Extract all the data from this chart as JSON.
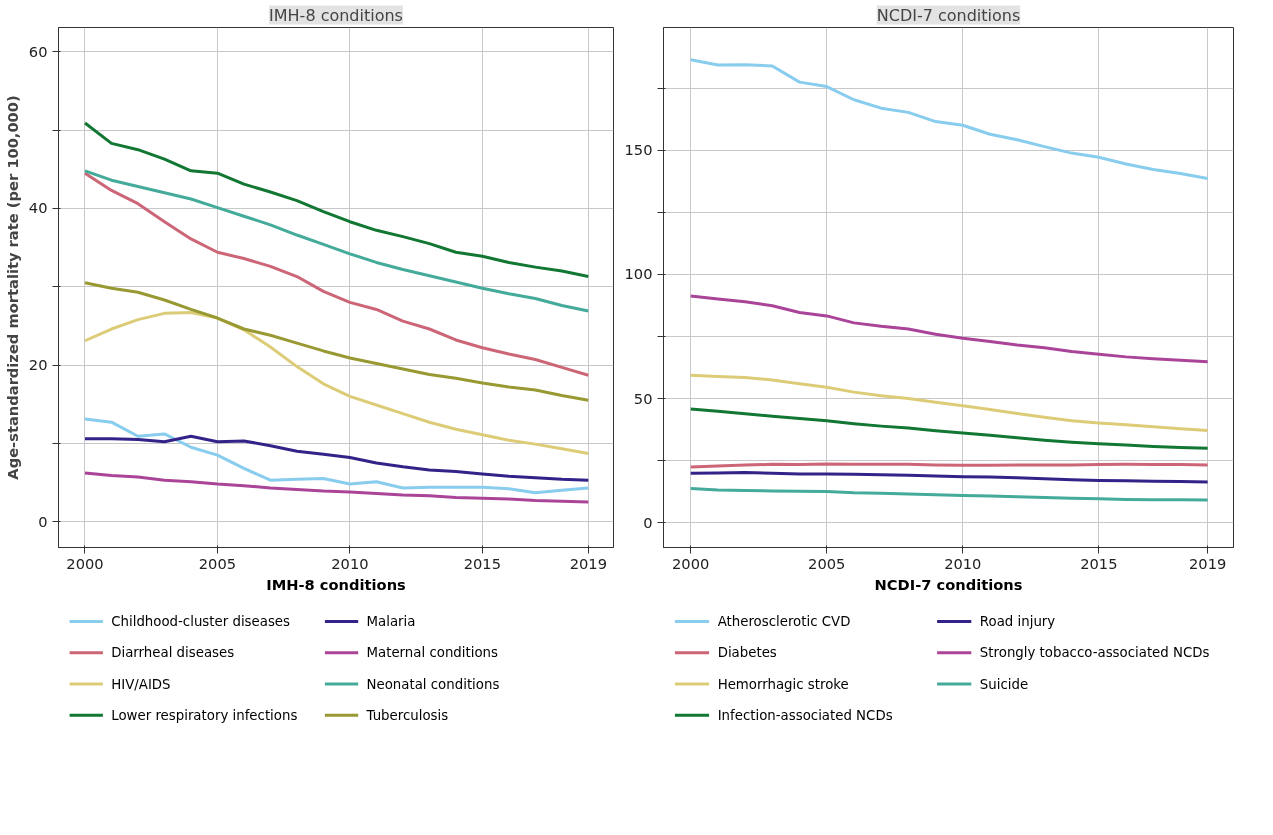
{
  "chart_data": [
    {
      "type": "line",
      "title": "IMH-8 conditions",
      "ylabel": "Age-standardized mortality rate (per 100,000)",
      "legend_title": "IMH-8 conditions",
      "legend": "bottom",
      "grid": true,
      "marker": "none",
      "line_style": "solid",
      "x": [
        2000,
        2001,
        2002,
        2003,
        2004,
        2005,
        2006,
        2007,
        2008,
        2009,
        2010,
        2011,
        2012,
        2013,
        2014,
        2015,
        2016,
        2017,
        2018,
        2019
      ],
      "xlim": [
        1999.0,
        2019.95
      ],
      "xticks": [
        2000,
        2005,
        2010,
        2015,
        2019
      ],
      "ylim": [
        -3.3,
        63.1
      ],
      "yticks": [
        0,
        {
          "value": 10,
          "label": null
        },
        20,
        {
          "value": 30,
          "label": null
        },
        40,
        {
          "value": 50,
          "label": null
        },
        60
      ],
      "series": [
        {
          "name": "Childhood-cluster diseases",
          "color": "#88ccee",
          "values": [
            13.1,
            12.7,
            10.9,
            11.2,
            9.5,
            8.5,
            6.8,
            5.3,
            5.4,
            5.5,
            4.8,
            5.1,
            4.3,
            4.4,
            4.4,
            4.4,
            4.2,
            3.7,
            4.0,
            4.3
          ]
        },
        {
          "name": "Diarrheal diseases",
          "color": "#cc6677",
          "values": [
            44.5,
            42.3,
            40.6,
            38.3,
            36.1,
            34.4,
            33.6,
            32.6,
            31.3,
            29.4,
            28.0,
            27.1,
            25.6,
            24.6,
            23.2,
            22.2,
            21.4,
            20.7,
            19.7,
            18.7
          ]
        },
        {
          "name": "HIV/AIDS",
          "color": "#ddcc77",
          "values": [
            23.1,
            24.6,
            25.8,
            26.6,
            26.7,
            26.0,
            24.5,
            22.3,
            19.8,
            17.6,
            16.0,
            14.9,
            13.8,
            12.7,
            11.8,
            11.1,
            10.4,
            9.9,
            9.3,
            8.7
          ]
        },
        {
          "name": "Lower respiratory infections",
          "color": "#117733",
          "values": [
            50.9,
            48.3,
            47.5,
            46.3,
            44.8,
            44.5,
            43.1,
            42.1,
            41.0,
            39.6,
            38.3,
            37.2,
            36.4,
            35.5,
            34.4,
            33.9,
            33.1,
            32.5,
            32.0,
            31.3
          ]
        },
        {
          "name": "Malaria",
          "color": "#332288",
          "values": [
            10.6,
            10.6,
            10.5,
            10.2,
            10.9,
            10.2,
            10.3,
            9.7,
            9.0,
            8.6,
            8.2,
            7.5,
            7.0,
            6.6,
            6.4,
            6.1,
            5.8,
            5.6,
            5.4,
            5.3
          ]
        },
        {
          "name": "Maternal conditions",
          "color": "#aa4499",
          "values": [
            6.2,
            5.9,
            5.7,
            5.3,
            5.1,
            4.8,
            4.6,
            4.3,
            4.1,
            3.9,
            3.8,
            3.6,
            3.4,
            3.3,
            3.1,
            3.0,
            2.9,
            2.7,
            2.6,
            2.5
          ]
        },
        {
          "name": "Neonatal conditions",
          "color": "#44aa99",
          "values": [
            44.8,
            43.6,
            42.8,
            42.0,
            41.2,
            40.1,
            39.0,
            37.9,
            36.6,
            35.4,
            34.2,
            33.1,
            32.2,
            31.4,
            30.6,
            29.8,
            29.1,
            28.5,
            27.6,
            26.9
          ]
        },
        {
          "name": "Tuberculosis",
          "color": "#999933",
          "values": [
            30.5,
            29.8,
            29.3,
            28.3,
            27.1,
            26.0,
            24.6,
            23.8,
            22.8,
            21.8,
            20.9,
            20.2,
            19.5,
            18.8,
            18.3,
            17.7,
            17.2,
            16.8,
            16.1,
            15.5
          ]
        }
      ]
    },
    {
      "type": "line",
      "title": "NCDI-7 conditions",
      "legend_title": "NCDI-7 conditions",
      "legend": "bottom",
      "grid": true,
      "marker": "none",
      "line_style": "solid",
      "x": [
        2000,
        2001,
        2002,
        2003,
        2004,
        2005,
        2006,
        2007,
        2008,
        2009,
        2010,
        2011,
        2012,
        2013,
        2014,
        2015,
        2016,
        2017,
        2018,
        2019
      ],
      "xlim": [
        1999.0,
        2019.95
      ],
      "xticks": [
        2000,
        2005,
        2010,
        2015,
        2019
      ],
      "ylim": [
        -10,
        199.5
      ],
      "yticks": [
        0,
        {
          "value": 25,
          "label": null
        },
        50,
        {
          "value": 75,
          "label": null
        },
        100,
        {
          "value": 125,
          "label": null
        },
        150,
        {
          "value": 175,
          "label": null
        }
      ],
      "series": [
        {
          "name": "Atherosclerotic CVD",
          "color": "#88ccee",
          "values": [
            186.5,
            184.4,
            184.5,
            184.0,
            177.5,
            175.7,
            170.4,
            167.0,
            165.3,
            161.6,
            160.1,
            156.5,
            154.3,
            151.5,
            148.9,
            147.2,
            144.5,
            142.3,
            140.7,
            138.7
          ]
        },
        {
          "name": "Diabetes",
          "color": "#cc6677",
          "values": [
            22.4,
            22.8,
            23.2,
            23.5,
            23.4,
            23.6,
            23.5,
            23.5,
            23.5,
            23.2,
            23.1,
            23.1,
            23.2,
            23.2,
            23.2,
            23.4,
            23.5,
            23.4,
            23.4,
            23.2
          ]
        },
        {
          "name": "Hemorrhagic stroke",
          "color": "#ddcc77",
          "values": [
            59.4,
            58.9,
            58.5,
            57.5,
            56.0,
            54.6,
            52.6,
            51.1,
            50.0,
            48.5,
            47.1,
            45.6,
            44.0,
            42.5,
            41.1,
            40.2,
            39.5,
            38.6,
            37.8,
            37.1
          ]
        },
        {
          "name": "Infection-associated NCDs",
          "color": "#117733",
          "values": [
            45.8,
            44.9,
            43.9,
            42.9,
            42.0,
            41.1,
            39.9,
            38.9,
            38.1,
            37.0,
            36.1,
            35.2,
            34.2,
            33.2,
            32.4,
            31.8,
            31.3,
            30.7,
            30.3,
            30.0
          ]
        },
        {
          "name": "Road injury",
          "color": "#332288",
          "values": [
            19.9,
            20.0,
            20.2,
            19.9,
            19.6,
            19.6,
            19.5,
            19.3,
            19.1,
            18.8,
            18.5,
            18.4,
            18.1,
            17.7,
            17.3,
            17.0,
            16.9,
            16.7,
            16.6,
            16.4
          ]
        },
        {
          "name": "Strongly tobacco-associated NCDs",
          "color": "#aa4499",
          "values": [
            91.3,
            90.1,
            89.0,
            87.4,
            84.7,
            83.3,
            80.5,
            79.1,
            78.0,
            75.9,
            74.3,
            73.0,
            71.6,
            70.5,
            69.0,
            67.9,
            66.8,
            66.0,
            65.4,
            64.8
          ]
        },
        {
          "name": "Suicide",
          "color": "#44aa99",
          "values": [
            13.8,
            13.2,
            13.0,
            12.8,
            12.7,
            12.6,
            12.1,
            11.9,
            11.6,
            11.3,
            11.0,
            10.7,
            10.4,
            10.1,
            9.8,
            9.6,
            9.3,
            9.2,
            9.2,
            9.1
          ]
        }
      ]
    }
  ]
}
